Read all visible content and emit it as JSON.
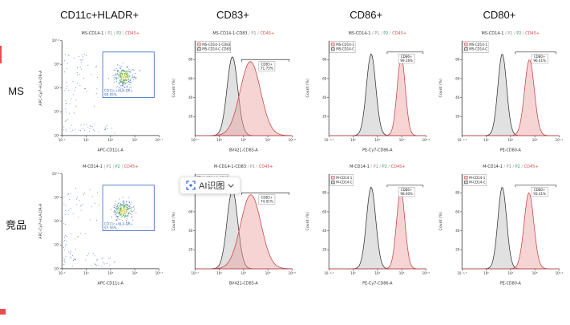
{
  "figure": {
    "columns": [
      "CD11c+HLADR+",
      "CD83+",
      "CD86+",
      "CD80+"
    ],
    "rows": [
      "MS",
      "竞品"
    ]
  },
  "ai_badge": {
    "label": "AI识图"
  },
  "colors": {
    "axis": "#333333",
    "gate_blue": "#4472c4",
    "dot_blue": "#4a77c4",
    "dot_green": "#58b04c",
    "dot_yellow": "#e8c93a",
    "accent_red": "#e84c4c"
  },
  "chart_data": [
    {
      "id": "ms-cd11c-hladr",
      "type": "scatter",
      "seed": 7,
      "title": [
        {
          "t": "MS-CD14-1",
          "c": "#333333"
        },
        {
          "t": " | ",
          "c": "#a0a0a0"
        },
        {
          "t": "P1",
          "c": "#8a8a8a"
        },
        {
          "t": " | ",
          "c": "#a0a0a0"
        },
        {
          "t": "P2",
          "c": "#2e9e63"
        },
        {
          "t": " | ",
          "c": "#a0a0a0"
        },
        {
          "t": "CD45+",
          "c": "#d05050"
        }
      ],
      "xlabel": "APC-CD11c-A",
      "ylabel": "APC-Cy7-HLA-DR-A",
      "xticks": [
        "10⁻¹",
        "10¹",
        "10³",
        "10⁵",
        "10⁷·⁷"
      ],
      "yticks": [
        "10⁰",
        "10¹",
        "10³",
        "10⁵",
        "10⁷·⁶"
      ],
      "cluster": {
        "cx": 0.64,
        "cy": 0.62,
        "sdx": 0.05,
        "sdy": 0.055,
        "n": 240
      },
      "gate": {
        "name": "CD11c+HLA-DR+",
        "percent": "98.95%",
        "x0": 0.42,
        "y0": 0.4,
        "x1": 0.95,
        "y1": 0.88
      }
    },
    {
      "id": "ms-cd83",
      "type": "histogram",
      "title": [
        {
          "t": "MS-CD14-1-CD83",
          "c": "#333333"
        },
        {
          "t": " / ",
          "c": "#a0a0a0"
        },
        {
          "t": "P1",
          "c": "#8a8a8a"
        },
        {
          "t": " / ",
          "c": "#a0a0a0"
        },
        {
          "t": "CD45+",
          "c": "#d05050"
        }
      ],
      "xlabel": "BV421-CD83-A",
      "ylabel": "Count (%)",
      "xticks": [
        "10²·⁹",
        "10⁴",
        "10⁵",
        "10⁶",
        "10⁶·⁵"
      ],
      "yticks": [
        "20",
        "40",
        "60",
        "80"
      ],
      "series": [
        {
          "name": "MS-CD14-1-CD83",
          "stroke": "#c94747",
          "fill": "rgba(238,160,160,0.45)",
          "center": 0.57,
          "sigma": 0.105,
          "h": 0.78
        },
        {
          "name": "MS-CD14-C-CD83",
          "stroke": "#383838",
          "fill": "rgba(205,205,205,0.6)",
          "center": 0.385,
          "sigma": 0.055,
          "h": 0.83
        }
      ],
      "gate": {
        "name": "CD83+",
        "percent": "71.73%",
        "x0": 0.48,
        "x1": 0.97,
        "y": 0.2,
        "label_x": 0.74
      }
    },
    {
      "id": "ms-cd86",
      "type": "histogram",
      "title": [
        {
          "t": "MS-CD14-1",
          "c": "#333333"
        },
        {
          "t": " / ",
          "c": "#a0a0a0"
        },
        {
          "t": "P1",
          "c": "#8a8a8a"
        },
        {
          "t": " / ",
          "c": "#a0a0a0"
        },
        {
          "t": "P2",
          "c": "#2e9e63"
        },
        {
          "t": " / ",
          "c": "#a0a0a0"
        },
        {
          "t": "CD45+",
          "c": "#d05050"
        }
      ],
      "xlabel": "PE-Cy7-CD86-A",
      "ylabel": "Count (%)",
      "xticks": [
        "10⁻¹·³",
        "10⁰",
        "10³",
        "10⁵",
        "10⁶·⁵"
      ],
      "yticks": [
        "20",
        "40",
        "60",
        "80"
      ],
      "series": [
        {
          "name": "MS-CD14-1",
          "stroke": "#c94747",
          "fill": "rgba(238,160,160,0.45)",
          "center": 0.745,
          "sigma": 0.042,
          "h": 0.83
        },
        {
          "name": "MS-CD14-C",
          "stroke": "#383838",
          "fill": "rgba(205,205,205,0.6)",
          "center": 0.435,
          "sigma": 0.048,
          "h": 0.86
        }
      ],
      "gate": {
        "name": "CD86+",
        "percent": "99.16%",
        "x0": 0.6,
        "x1": 0.97,
        "y": 0.12,
        "label_x": 0.8
      }
    },
    {
      "id": "ms-cd80",
      "type": "histogram",
      "title": [
        {
          "t": "MS-CD14-1",
          "c": "#333333"
        },
        {
          "t": " / ",
          "c": "#a0a0a0"
        },
        {
          "t": "P1",
          "c": "#8a8a8a"
        },
        {
          "t": " / ",
          "c": "#a0a0a0"
        },
        {
          "t": "P2",
          "c": "#2e9e63"
        },
        {
          "t": " / ",
          "c": "#a0a0a0"
        },
        {
          "t": "CD45+",
          "c": "#d05050"
        }
      ],
      "xlabel": "PE-CD80-A",
      "ylabel": "Count (%)",
      "xticks": [
        "10⁻¹·³",
        "10⁰",
        "10³",
        "10⁵",
        "10⁷·⁴"
      ],
      "yticks": [
        "20",
        "40",
        "60",
        "80"
      ],
      "series": [
        {
          "name": "MS-CD14-1",
          "stroke": "#c94747",
          "fill": "rgba(238,160,160,0.45)",
          "center": 0.695,
          "sigma": 0.05,
          "h": 0.8
        },
        {
          "name": "MS-CD14-C",
          "stroke": "#383838",
          "fill": "rgba(205,205,205,0.6)",
          "center": 0.415,
          "sigma": 0.045,
          "h": 0.86
        }
      ],
      "gate": {
        "name": "CD80+",
        "percent": "96.41%",
        "x0": 0.55,
        "x1": 0.97,
        "y": 0.12,
        "label_x": 0.8
      }
    },
    {
      "id": "m-cd11c-hladr",
      "type": "scatter",
      "seed": 13,
      "title": [
        {
          "t": "M-CD14-1",
          "c": "#333333"
        },
        {
          "t": " | ",
          "c": "#a0a0a0"
        },
        {
          "t": "P1",
          "c": "#8a8a8a"
        },
        {
          "t": " | ",
          "c": "#a0a0a0"
        },
        {
          "t": "P2",
          "c": "#2e9e63"
        },
        {
          "t": " | ",
          "c": "#a0a0a0"
        },
        {
          "t": "CD45+",
          "c": "#d05050"
        }
      ],
      "xlabel": "APC-CD11c-A",
      "ylabel": "APC-Cy7-HLA-DR-A",
      "xticks": [
        "10⁻¹",
        "10¹",
        "10³",
        "10⁵",
        "10⁷·⁷"
      ],
      "yticks": [
        "10⁰",
        "10¹",
        "10³",
        "10⁵",
        "10⁷·⁶"
      ],
      "cluster": {
        "cx": 0.63,
        "cy": 0.61,
        "sdx": 0.05,
        "sdy": 0.055,
        "n": 240
      },
      "gate": {
        "name": "CD11c+HLA-DR+",
        "percent": "97.56%",
        "x0": 0.42,
        "y0": 0.4,
        "x1": 0.95,
        "y1": 0.88
      }
    },
    {
      "id": "m-cd83",
      "type": "histogram",
      "title": [
        {
          "t": "M-CD14-1-CD83",
          "c": "#333333"
        },
        {
          "t": " / ",
          "c": "#a0a0a0"
        },
        {
          "t": "P1",
          "c": "#8a8a8a"
        },
        {
          "t": " / ",
          "c": "#a0a0a0"
        },
        {
          "t": "CD45+",
          "c": "#d05050"
        }
      ],
      "xlabel": "BV421-CD83-A",
      "ylabel": "Count (%)",
      "xticks": [
        "10²·⁹",
        "10⁴",
        "10⁵",
        "10⁶",
        "10⁶·⁵"
      ],
      "yticks": [
        "20",
        "40",
        "60",
        "80"
      ],
      "series": [
        {
          "name": "M-CD14-1-CD83",
          "stroke": "#c94747",
          "fill": "rgba(238,160,160,0.45)",
          "center": 0.575,
          "sigma": 0.105,
          "h": 0.78
        },
        {
          "name": "M-CD14-C-CD83",
          "stroke": "#383838",
          "fill": "rgba(205,205,205,0.6)",
          "center": 0.385,
          "sigma": 0.055,
          "h": 0.83
        }
      ],
      "gate": {
        "name": "CD83+",
        "percent": "74.01%",
        "x0": 0.48,
        "x1": 0.97,
        "y": 0.2,
        "label_x": 0.74
      }
    },
    {
      "id": "m-cd86",
      "type": "histogram",
      "title": [
        {
          "t": "M-CD14-1",
          "c": "#333333"
        },
        {
          "t": " / ",
          "c": "#a0a0a0"
        },
        {
          "t": "P1",
          "c": "#8a8a8a"
        },
        {
          "t": " / ",
          "c": "#a0a0a0"
        },
        {
          "t": "P2",
          "c": "#2e9e63"
        },
        {
          "t": " / ",
          "c": "#a0a0a0"
        },
        {
          "t": "CD45+",
          "c": "#d05050"
        }
      ],
      "xlabel": "PE-Cy7-CD86-A",
      "ylabel": "Count (%)",
      "xticks": [
        "10⁻¹·³",
        "10⁰",
        "10³",
        "10⁵",
        "10⁶·⁵"
      ],
      "yticks": [
        "20",
        "40",
        "60",
        "80"
      ],
      "series": [
        {
          "name": "M-CD14-1",
          "stroke": "#c94747",
          "fill": "rgba(238,160,160,0.45)",
          "center": 0.74,
          "sigma": 0.043,
          "h": 0.83
        },
        {
          "name": "M-CD14-C",
          "stroke": "#383838",
          "fill": "rgba(205,205,205,0.6)",
          "center": 0.435,
          "sigma": 0.048,
          "h": 0.86
        }
      ],
      "gate": {
        "name": "CD86+",
        "percent": "98.00%",
        "x0": 0.6,
        "x1": 0.97,
        "y": 0.12,
        "label_x": 0.8
      }
    },
    {
      "id": "m-cd80",
      "type": "histogram",
      "title": [
        {
          "t": "M-CD14-1",
          "c": "#333333"
        },
        {
          "t": " / ",
          "c": "#a0a0a0"
        },
        {
          "t": "P1",
          "c": "#8a8a8a"
        },
        {
          "t": " / ",
          "c": "#a0a0a0"
        },
        {
          "t": "P2",
          "c": "#2e9e63"
        },
        {
          "t": " / ",
          "c": "#a0a0a0"
        },
        {
          "t": "CD45+",
          "c": "#d05050"
        }
      ],
      "xlabel": "PE-CD80-A",
      "ylabel": "Count (%)",
      "xticks": [
        "10⁻¹·³",
        "10⁰",
        "10³",
        "10⁵",
        "10⁷·⁴"
      ],
      "yticks": [
        "20",
        "40",
        "60",
        "80"
      ],
      "series": [
        {
          "name": "M-CD14-1",
          "stroke": "#c94747",
          "fill": "rgba(238,160,160,0.45)",
          "center": 0.69,
          "sigma": 0.05,
          "h": 0.8
        },
        {
          "name": "M-CD14-C",
          "stroke": "#383838",
          "fill": "rgba(205,205,205,0.6)",
          "center": 0.415,
          "sigma": 0.045,
          "h": 0.86
        }
      ],
      "gate": {
        "name": "CD80+",
        "percent": "93.41%",
        "x0": 0.55,
        "x1": 0.97,
        "y": 0.12,
        "label_x": 0.8
      }
    }
  ]
}
